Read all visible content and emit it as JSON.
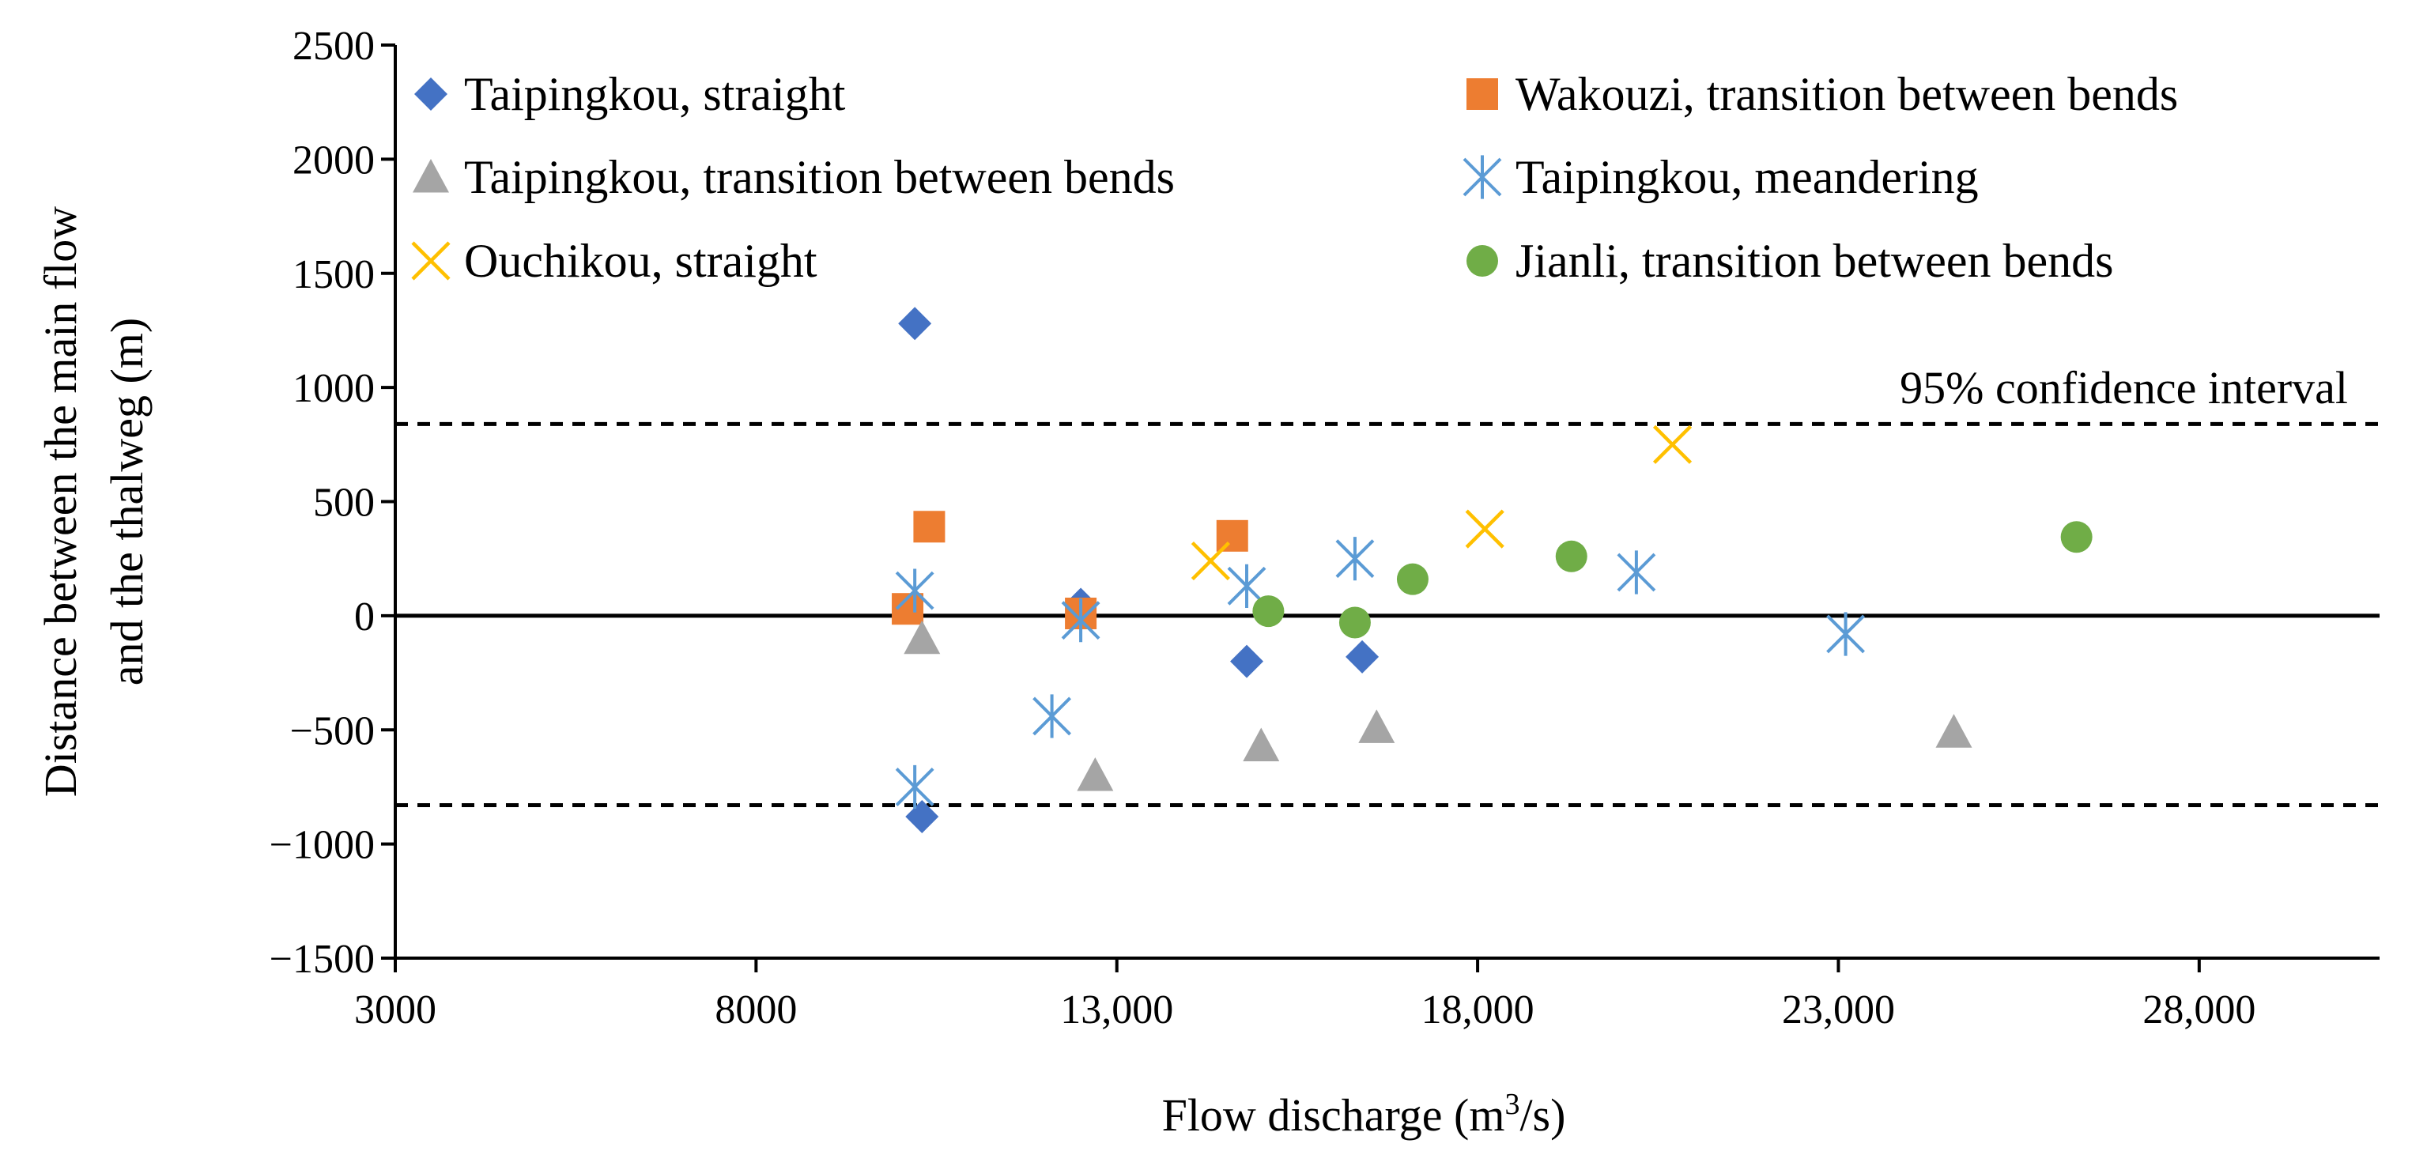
{
  "chart_data": {
    "type": "scatter",
    "title": "",
    "xlabel": "Flow discharge (m",
    "xlabel_sup": "3",
    "xlabel_end": "/s)",
    "ylabel_line1": "Distance between the main flow",
    "ylabel_line2": "and the thalweg (m)",
    "xlim": [
      3000,
      30500
    ],
    "ylim": [
      -1500,
      2500
    ],
    "x_ticks": [
      3000,
      8000,
      13000,
      18000,
      23000,
      28000
    ],
    "x_tick_labels": [
      "3000",
      "8000",
      "13,000",
      "18,000",
      "23,000",
      "28,000"
    ],
    "y_ticks": [
      -1500,
      -1000,
      -500,
      0,
      500,
      1000,
      1500,
      2000,
      2500
    ],
    "y_tick_labels": [
      "−1500",
      "−1000",
      "−500",
      "0",
      "500",
      "1000",
      "1500",
      "2000",
      "2500"
    ],
    "grid": false,
    "legend_position": "top",
    "reference_lines": [
      {
        "y": 0,
        "style": "solid"
      },
      {
        "y": 840,
        "style": "dashed"
      },
      {
        "y": -830,
        "style": "dashed"
      }
    ],
    "annotation": "95% confidence interval",
    "series": [
      {
        "name": "Taipingkou, straight",
        "marker": "diamond",
        "color": "#4472C4",
        "points": [
          [
            10200,
            1280
          ],
          [
            10300,
            -880
          ],
          [
            12500,
            50
          ],
          [
            14800,
            -200
          ],
          [
            16400,
            -180
          ]
        ]
      },
      {
        "name": "Wakouzi, transition between bends",
        "marker": "square",
        "color": "#ED7D31",
        "points": [
          [
            10400,
            390
          ],
          [
            10100,
            30
          ],
          [
            12500,
            10
          ],
          [
            14600,
            350
          ]
        ]
      },
      {
        "name": "Taipingkou, transition between bends",
        "marker": "triangle",
        "color": "#A5A5A5",
        "points": [
          [
            10300,
            -100
          ],
          [
            12700,
            -700
          ],
          [
            15000,
            -570
          ],
          [
            16600,
            -490
          ],
          [
            24600,
            -510
          ]
        ]
      },
      {
        "name": "Taipingkou, meandering",
        "marker": "asterisk",
        "color": "#5B9BD5",
        "points": [
          [
            10200,
            110
          ],
          [
            10200,
            -750
          ],
          [
            12100,
            -440
          ],
          [
            12500,
            -20
          ],
          [
            14800,
            130
          ],
          [
            16300,
            250
          ],
          [
            20200,
            190
          ],
          [
            23100,
            -80
          ]
        ]
      },
      {
        "name": "Ouchikou, straight",
        "marker": "x",
        "color": "#FFC000",
        "points": [
          [
            14300,
            240
          ],
          [
            18100,
            380
          ],
          [
            20700,
            750
          ]
        ]
      },
      {
        "name": "Jianli, transition between bends",
        "marker": "circle",
        "color": "#70AD47",
        "points": [
          [
            15100,
            20
          ],
          [
            16300,
            -30
          ],
          [
            17100,
            160
          ],
          [
            19300,
            260
          ],
          [
            26300,
            345
          ]
        ]
      }
    ]
  }
}
